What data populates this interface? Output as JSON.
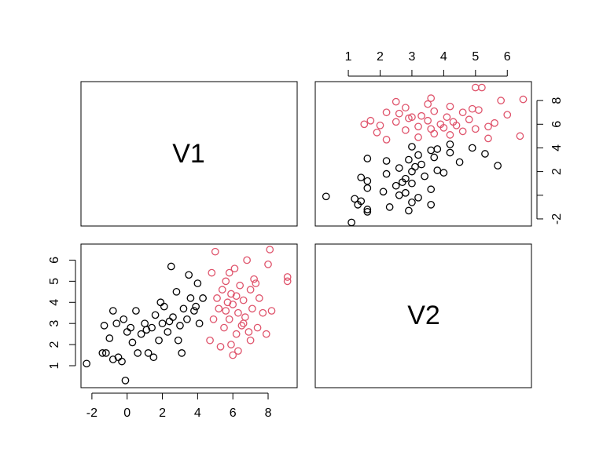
{
  "chart_data": {
    "type": "scatter-matrix",
    "variables": [
      "V1",
      "V2"
    ],
    "series": [
      {
        "color": "#000000",
        "V1": [
          -2.3,
          -1.4,
          -1.2,
          -0.8,
          -0.5,
          -0.1,
          -0.3,
          -1.3,
          -1.0,
          -0.6,
          -0.2,
          0.0,
          0.3,
          0.5,
          0.8,
          1.0,
          1.2,
          1.4,
          1.6,
          1.8,
          2.0,
          2.1,
          2.3,
          2.5,
          2.6,
          2.8,
          3.0,
          3.1,
          3.2,
          3.4,
          3.5,
          3.6,
          3.8,
          4.0,
          4.1,
          1.5,
          0.2,
          2.9,
          -0.8,
          3.9,
          1.1,
          2.4,
          4.3,
          0.6,
          1.9
        ],
        "V2": [
          1.1,
          1.6,
          1.6,
          1.3,
          1.4,
          0.3,
          1.2,
          2.9,
          2.3,
          3.0,
          3.2,
          2.6,
          2.1,
          3.6,
          2.5,
          3.0,
          1.6,
          2.8,
          3.4,
          2.2,
          3.0,
          3.8,
          2.6,
          5.7,
          3.3,
          4.5,
          2.9,
          1.6,
          3.7,
          3.2,
          5.3,
          4.2,
          3.6,
          4.9,
          3.0,
          1.4,
          2.8,
          2.2,
          3.6,
          3.8,
          2.7,
          3.1,
          4.2,
          1.6,
          4.0
        ]
      },
      {
        "color": "#DF536B",
        "V1": [
          4.7,
          5.0,
          4.8,
          5.2,
          5.4,
          5.5,
          5.6,
          5.7,
          5.8,
          5.9,
          6.0,
          6.0,
          6.1,
          6.2,
          6.3,
          6.4,
          6.5,
          6.6,
          6.7,
          6.8,
          6.9,
          7.0,
          7.1,
          7.2,
          7.4,
          7.5,
          7.7,
          7.9,
          8.1,
          8.2,
          8.0,
          9.1,
          9.1,
          5.3,
          6.3,
          5.1,
          5.8,
          6.6,
          7.3,
          4.9,
          6.2,
          5.6,
          7.0,
          5.9
        ],
        "V2": [
          2.2,
          6.4,
          5.4,
          3.7,
          4.6,
          2.8,
          5.0,
          4.0,
          3.2,
          4.4,
          1.5,
          3.9,
          5.6,
          2.5,
          3.5,
          4.8,
          2.9,
          4.1,
          3.3,
          6.0,
          2.6,
          4.6,
          3.7,
          5.1,
          2.8,
          4.2,
          3.5,
          2.5,
          6.5,
          3.6,
          5.8,
          5.2,
          5.0,
          1.9,
          1.7,
          4.2,
          5.4,
          3.0,
          4.9,
          3.2,
          4.3,
          3.6,
          2.2,
          2.0
        ]
      }
    ],
    "panels": [
      {
        "x": "V1",
        "y": "V2",
        "xlim": [
          -2.62,
          9.65
        ],
        "ylim": [
          -0.04,
          6.76
        ],
        "xticks": [
          -2,
          0,
          2,
          4,
          6,
          8
        ],
        "yticks": [
          1,
          2,
          3,
          4,
          5,
          6
        ]
      },
      {
        "x": "V2",
        "y": "V1",
        "xlim": [
          -0.04,
          6.76
        ],
        "ylim": [
          -2.6,
          9.6
        ],
        "xticks": [
          1,
          2,
          3,
          4,
          5,
          6
        ],
        "yticks": [
          -2,
          {
            "value": 0,
            "label": null
          },
          2,
          4,
          6,
          8
        ]
      }
    ]
  }
}
